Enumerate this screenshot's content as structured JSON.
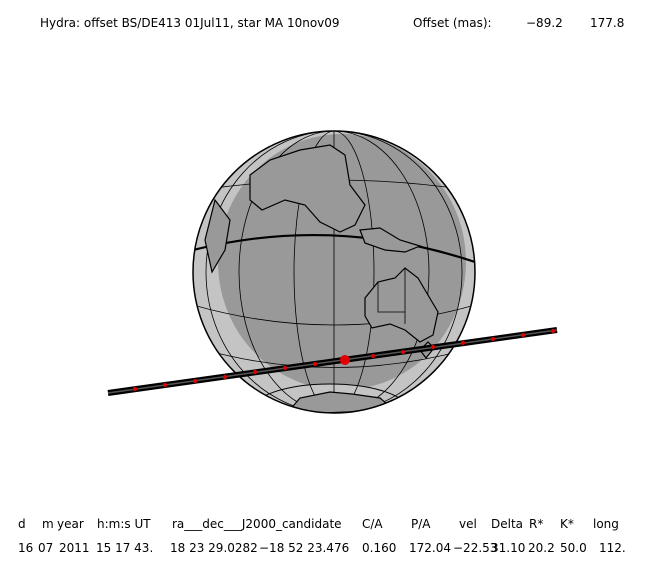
{
  "header": {
    "title": "Hydra: offset BS/DE413 01Jul11, star MA 10nov09",
    "offset_label": "Offset (mas):",
    "offset_x": "−89.2",
    "offset_y": "177.8"
  },
  "table": {
    "columns": [
      "d",
      "m",
      "year",
      "h:m:s UT",
      "ra___dec___J2000_candidate",
      "C/A",
      "P/A",
      "vel",
      "Delta",
      "R*",
      "K*",
      "long"
    ],
    "rows": [
      [
        "16",
        "07",
        "2011",
        "15 17 43.",
        "18 23 29.0282",
        "−18 52 23.476",
        "0.160",
        "172.04",
        "−22.53",
        "31.10",
        "20.2",
        "50.0",
        "112."
      ]
    ]
  }
}
